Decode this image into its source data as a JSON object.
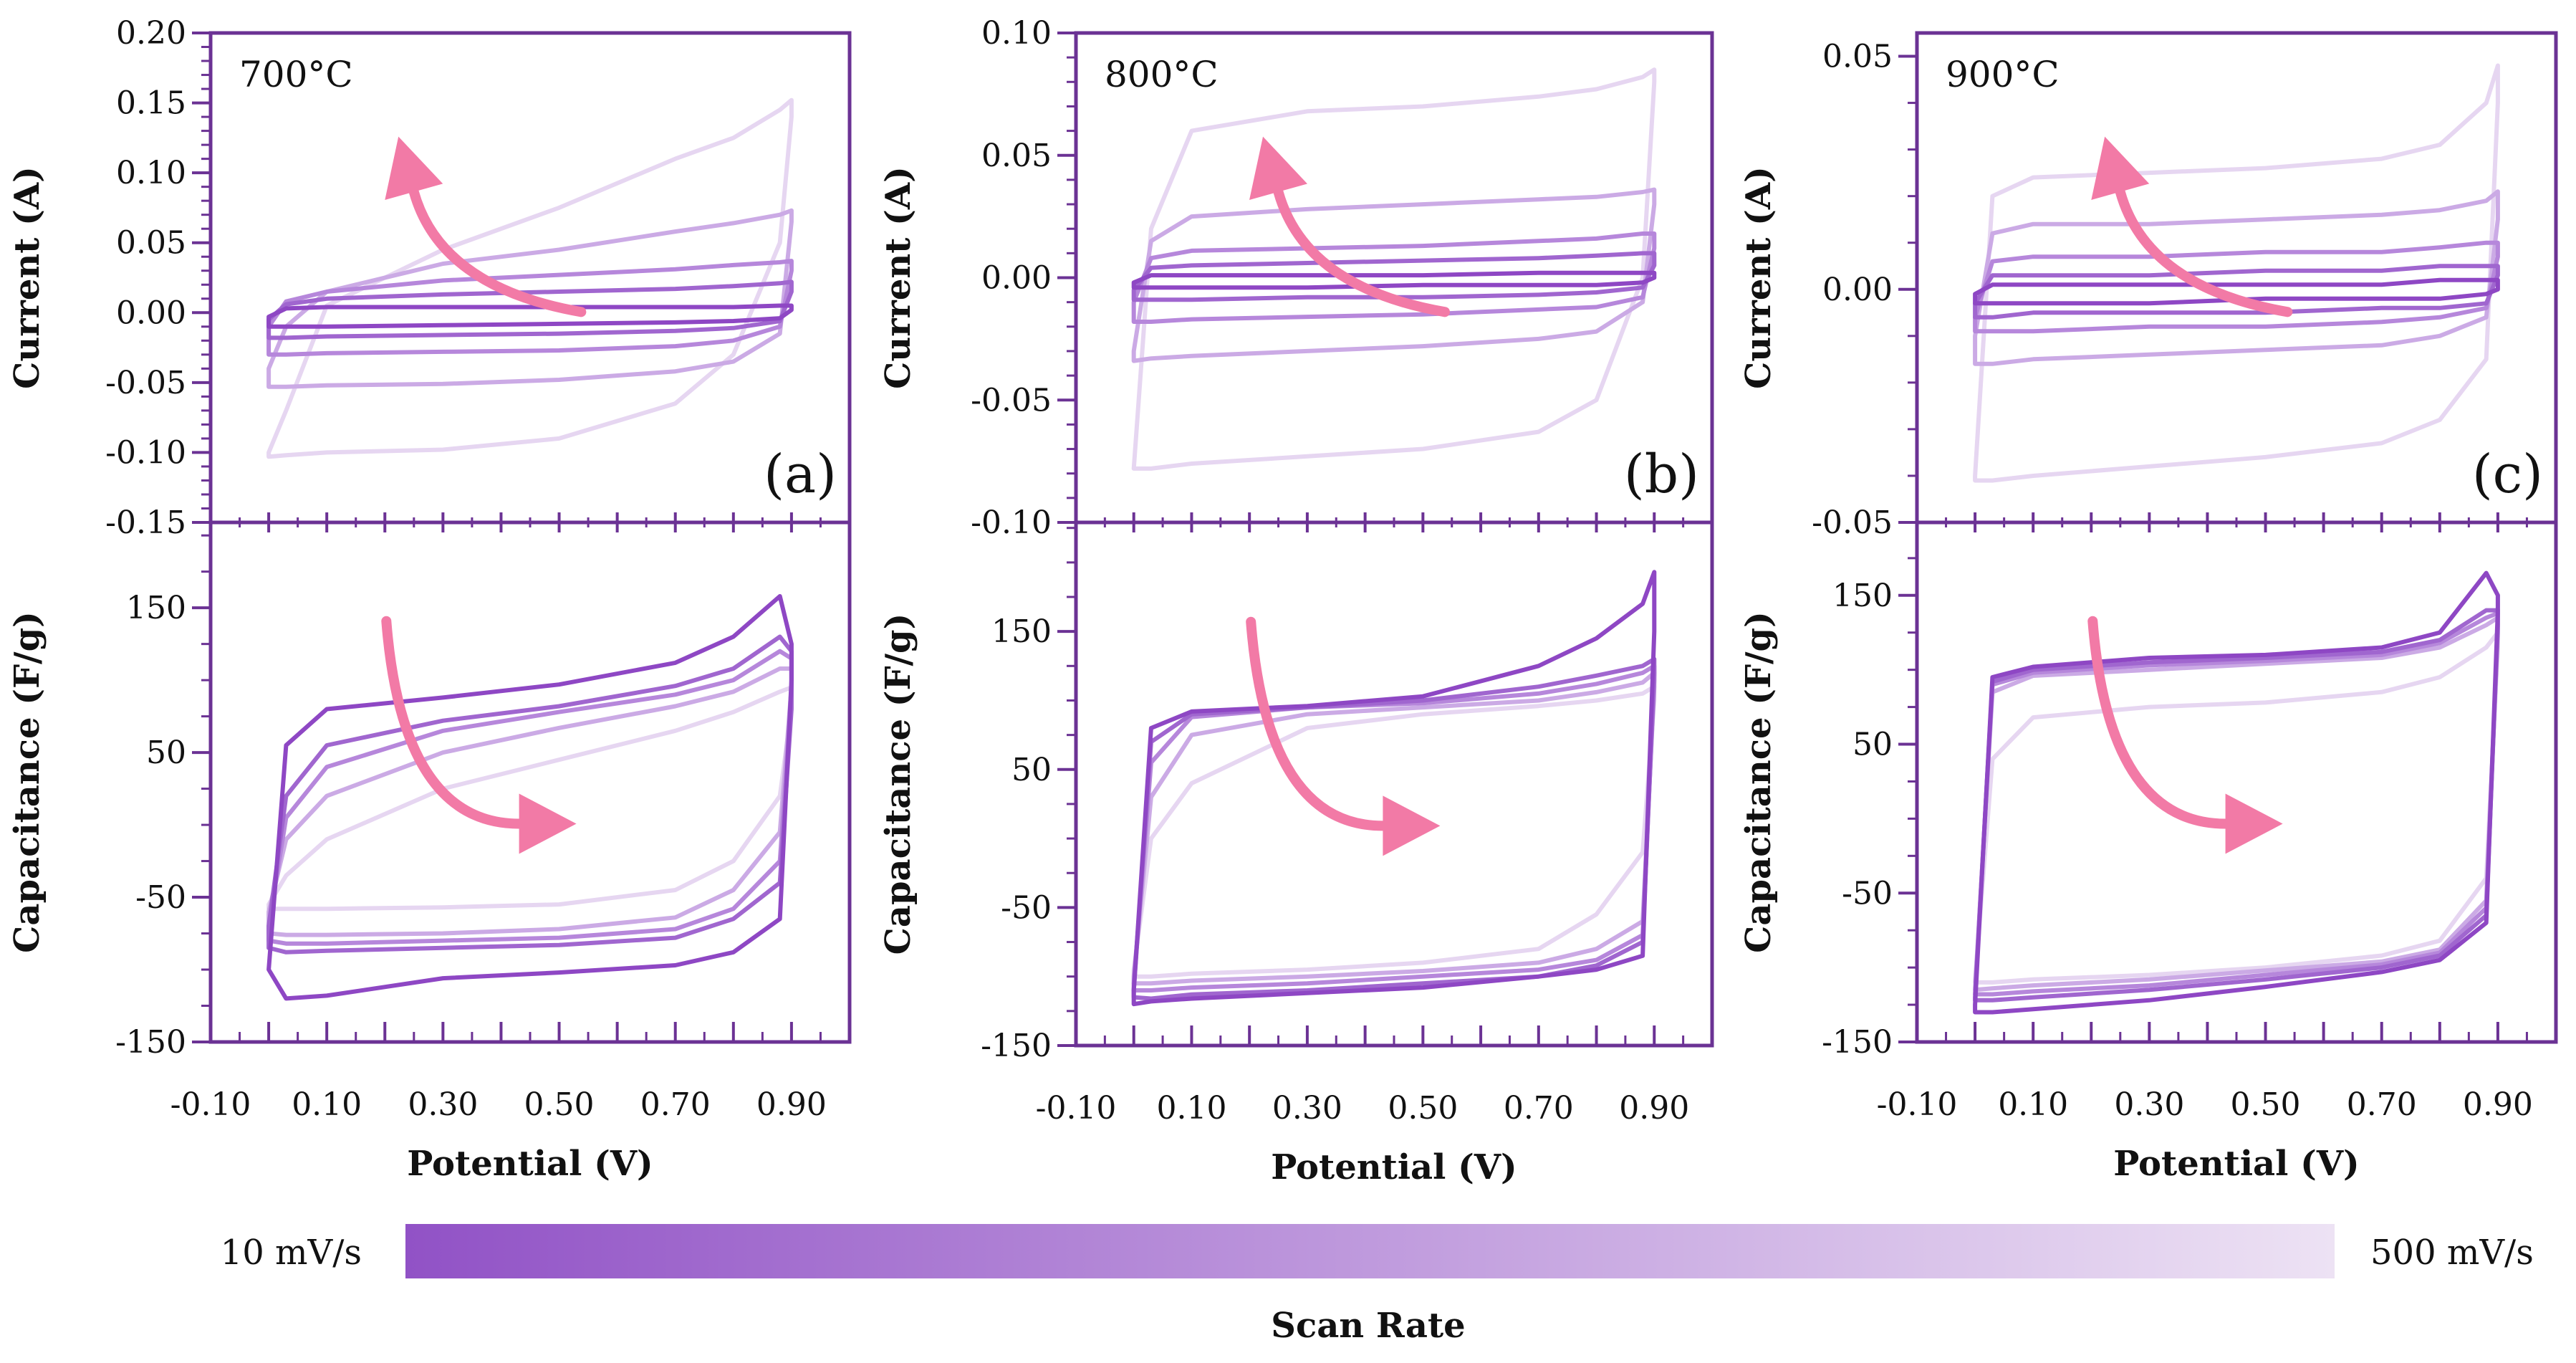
{
  "chart_data": {
    "type": "line",
    "x_grid": [
      0.0,
      0.03,
      0.1,
      0.3,
      0.5,
      0.7,
      0.8,
      0.88,
      0.9
    ],
    "series_colors": [
      "#8e47c4",
      "#a066cf",
      "#b687db",
      "#cbaae5",
      "#e6d6f1"
    ],
    "arrow_color": "#f27aa6",
    "xlabel": "Potential (V)",
    "xlim": [
      -0.1,
      1.0
    ],
    "xticks": [
      "-0.10",
      "0.10",
      "0.30",
      "0.50",
      "0.70",
      "0.90"
    ],
    "panels": [
      {
        "temperature": "700°C",
        "letter": "(a)",
        "current": {
          "ylabel": "Current (A)",
          "ylim": [
            -0.15,
            0.2
          ],
          "yticks": [
            "0.20",
            "0.15",
            "0.10",
            "0.05",
            "0.00",
            "-0.05",
            "-0.10",
            "-0.15"
          ],
          "ytick_values": [
            0.2,
            0.15,
            0.1,
            0.05,
            0.0,
            -0.05,
            -0.1,
            -0.15
          ],
          "series": [
            {
              "upper": [
                -0.003,
                0.003,
                0.004,
                0.004,
                0.004,
                0.004,
                0.004,
                0.005,
                0.005
              ],
              "lower": [
                -0.01,
                -0.01,
                -0.01,
                -0.009,
                -0.008,
                -0.007,
                -0.006,
                -0.004,
                0.002
              ]
            },
            {
              "upper": [
                -0.005,
                0.006,
                0.01,
                0.013,
                0.015,
                0.017,
                0.019,
                0.021,
                0.022
              ],
              "lower": [
                -0.018,
                -0.018,
                -0.017,
                -0.016,
                -0.015,
                -0.013,
                -0.011,
                -0.006,
                0.015
              ]
            },
            {
              "upper": [
                -0.01,
                0.008,
                0.015,
                0.023,
                0.027,
                0.031,
                0.034,
                0.036,
                0.037
              ],
              "lower": [
                -0.03,
                -0.03,
                -0.029,
                -0.028,
                -0.027,
                -0.024,
                -0.02,
                -0.01,
                0.03
              ]
            },
            {
              "upper": [
                -0.04,
                -0.01,
                0.015,
                0.035,
                0.045,
                0.058,
                0.064,
                0.07,
                0.073
              ],
              "lower": [
                -0.053,
                -0.053,
                -0.052,
                -0.051,
                -0.048,
                -0.042,
                -0.035,
                -0.015,
                0.065
              ]
            },
            {
              "upper": [
                -0.1,
                -0.07,
                0.005,
                0.045,
                0.075,
                0.11,
                0.125,
                0.145,
                0.152
              ],
              "lower": [
                -0.103,
                -0.102,
                -0.1,
                -0.098,
                -0.09,
                -0.065,
                -0.03,
                0.05,
                0.14
              ]
            }
          ]
        },
        "capacitance": {
          "ylabel": "Capacitance (F/g)",
          "ylim": [
            -150,
            209
          ],
          "yticks": [
            "150",
            "50",
            "-50",
            "-150"
          ],
          "ytick_values": [
            150,
            50,
            -50,
            -150
          ],
          "series": [
            {
              "upper": [
                -100,
                55,
                80,
                88,
                97,
                112,
                130,
                158,
                125
              ],
              "lower": [
                -100,
                -120,
                -118,
                -106,
                -102,
                -97,
                -88,
                -65,
                100
              ]
            },
            {
              "upper": [
                -70,
                20,
                55,
                72,
                82,
                96,
                108,
                130,
                120
              ],
              "lower": [
                -85,
                -88,
                -87,
                -85,
                -83,
                -78,
                -65,
                -40,
                80
              ]
            },
            {
              "upper": [
                -70,
                5,
                40,
                65,
                78,
                90,
                100,
                120,
                115
              ],
              "lower": [
                -80,
                -82,
                -82,
                -80,
                -78,
                -72,
                -58,
                -25,
                90
              ]
            },
            {
              "upper": [
                -60,
                -10,
                20,
                50,
                67,
                82,
                92,
                108,
                108
              ],
              "lower": [
                -75,
                -76,
                -76,
                -75,
                -72,
                -64,
                -45,
                -5,
                95
              ]
            },
            {
              "upper": [
                -55,
                -35,
                -10,
                25,
                45,
                65,
                78,
                92,
                95
              ],
              "lower": [
                -58,
                -58,
                -58,
                -57,
                -55,
                -45,
                -25,
                20,
                80
              ]
            }
          ]
        }
      },
      {
        "temperature": "800°C",
        "letter": "(b)",
        "current": {
          "ylabel": "Current (A)",
          "ylim": [
            -0.1,
            0.1
          ],
          "yticks": [
            "0.10",
            "0.05",
            "0.00",
            "-0.05",
            "-0.10"
          ],
          "ytick_values": [
            0.1,
            0.05,
            0.0,
            -0.05,
            -0.1
          ],
          "series": [
            {
              "upper": [
                -0.002,
                0.001,
                0.001,
                0.001,
                0.001,
                0.002,
                0.002,
                0.002,
                0.002
              ],
              "lower": [
                -0.004,
                -0.004,
                -0.004,
                -0.004,
                -0.003,
                -0.003,
                -0.003,
                -0.002,
                0.0
              ]
            },
            {
              "upper": [
                -0.005,
                0.004,
                0.005,
                0.006,
                0.007,
                0.008,
                0.009,
                0.01,
                0.01
              ],
              "lower": [
                -0.009,
                -0.009,
                -0.009,
                -0.008,
                -0.008,
                -0.007,
                -0.006,
                -0.004,
                0.005
              ]
            },
            {
              "upper": [
                -0.01,
                0.008,
                0.011,
                0.012,
                0.013,
                0.015,
                0.016,
                0.018,
                0.018
              ],
              "lower": [
                -0.018,
                -0.018,
                -0.017,
                -0.016,
                -0.015,
                -0.013,
                -0.012,
                -0.008,
                0.012
              ]
            },
            {
              "upper": [
                -0.03,
                0.015,
                0.025,
                0.028,
                0.03,
                0.032,
                0.033,
                0.035,
                0.036
              ],
              "lower": [
                -0.034,
                -0.033,
                -0.032,
                -0.03,
                -0.028,
                -0.025,
                -0.022,
                -0.01,
                0.03
              ]
            },
            {
              "upper": [
                -0.078,
                0.02,
                0.06,
                0.068,
                0.07,
                0.074,
                0.077,
                0.082,
                0.085
              ],
              "lower": [
                -0.078,
                -0.078,
                -0.076,
                -0.073,
                -0.07,
                -0.063,
                -0.05,
                0.0,
                0.08
              ]
            }
          ]
        },
        "capacitance": {
          "ylabel": "Capacitance (F/g)",
          "ylim": [
            -150,
            229
          ],
          "yticks": [
            "150",
            "50",
            "-50",
            "-150"
          ],
          "ytick_values": [
            150,
            50,
            -50,
            -150
          ],
          "series": [
            {
              "upper": [
                -110,
                80,
                92,
                96,
                103,
                125,
                145,
                170,
                193
              ],
              "lower": [
                -120,
                -118,
                -116,
                -112,
                -108,
                -100,
                -95,
                -85,
                150
              ]
            },
            {
              "upper": [
                -110,
                70,
                90,
                95,
                100,
                110,
                118,
                125,
                130
              ],
              "lower": [
                -115,
                -116,
                -113,
                -110,
                -105,
                -100,
                -92,
                -75,
                120
              ]
            },
            {
              "upper": [
                -105,
                55,
                88,
                95,
                98,
                105,
                112,
                120,
                125
              ],
              "lower": [
                -110,
                -110,
                -108,
                -105,
                -100,
                -95,
                -88,
                -70,
                115
              ]
            },
            {
              "upper": [
                -100,
                30,
                75,
                90,
                95,
                100,
                106,
                113,
                120
              ],
              "lower": [
                -105,
                -105,
                -103,
                -100,
                -96,
                -90,
                -80,
                -60,
                110
              ]
            },
            {
              "upper": [
                -95,
                0,
                40,
                80,
                90,
                96,
                100,
                105,
                110
              ],
              "lower": [
                -100,
                -100,
                -98,
                -95,
                -90,
                -80,
                -55,
                -10,
                100
              ]
            }
          ]
        }
      },
      {
        "temperature": "900°C",
        "letter": "(c)",
        "current": {
          "ylabel": "Current (A)",
          "ylim": [
            -0.05,
            0.055
          ],
          "yticks": [
            "0.05",
            "0.00",
            "-0.05"
          ],
          "ytick_values": [
            0.05,
            0.0,
            -0.05
          ],
          "series": [
            {
              "upper": [
                -0.001,
                0.001,
                0.001,
                0.001,
                0.001,
                0.001,
                0.002,
                0.002,
                0.002
              ],
              "lower": [
                -0.003,
                -0.003,
                -0.003,
                -0.003,
                -0.002,
                -0.002,
                -0.002,
                -0.001,
                0.0
              ]
            },
            {
              "upper": [
                -0.003,
                0.003,
                0.003,
                0.003,
                0.004,
                0.004,
                0.005,
                0.005,
                0.005
              ],
              "lower": [
                -0.006,
                -0.006,
                -0.005,
                -0.005,
                -0.005,
                -0.004,
                -0.004,
                -0.003,
                0.003
              ]
            },
            {
              "upper": [
                -0.006,
                0.006,
                0.007,
                0.007,
                0.008,
                0.008,
                0.009,
                0.01,
                0.01
              ],
              "lower": [
                -0.009,
                -0.009,
                -0.009,
                -0.008,
                -0.008,
                -0.007,
                -0.006,
                -0.004,
                0.007
              ]
            },
            {
              "upper": [
                -0.01,
                0.012,
                0.014,
                0.014,
                0.015,
                0.016,
                0.017,
                0.019,
                0.021
              ],
              "lower": [
                -0.016,
                -0.016,
                -0.015,
                -0.014,
                -0.013,
                -0.012,
                -0.01,
                -0.006,
                0.015
              ]
            },
            {
              "upper": [
                -0.04,
                0.02,
                0.024,
                0.025,
                0.026,
                0.028,
                0.031,
                0.04,
                0.048
              ],
              "lower": [
                -0.041,
                -0.041,
                -0.04,
                -0.038,
                -0.036,
                -0.033,
                -0.028,
                -0.015,
                0.04
              ]
            }
          ]
        },
        "capacitance": {
          "ylabel": "Capacitance (F/g)",
          "ylim": [
            -150,
            199
          ],
          "yticks": [
            "150",
            "50",
            "-50",
            "-150"
          ],
          "ytick_values": [
            150,
            50,
            -50,
            -150
          ],
          "series": [
            {
              "upper": [
                -125,
                95,
                102,
                108,
                110,
                115,
                125,
                165,
                150
              ],
              "lower": [
                -130,
                -130,
                -128,
                -122,
                -113,
                -103,
                -95,
                -70,
                140
              ]
            },
            {
              "upper": [
                -120,
                92,
                100,
                105,
                108,
                112,
                120,
                140,
                140
              ],
              "lower": [
                -122,
                -122,
                -120,
                -115,
                -108,
                -100,
                -92,
                -65,
                130
              ]
            },
            {
              "upper": [
                -118,
                90,
                98,
                103,
                106,
                110,
                118,
                135,
                138
              ],
              "lower": [
                -118,
                -118,
                -116,
                -112,
                -105,
                -98,
                -90,
                -60,
                128
              ]
            },
            {
              "upper": [
                -115,
                85,
                96,
                100,
                104,
                108,
                115,
                130,
                135
              ],
              "lower": [
                -115,
                -114,
                -112,
                -108,
                -102,
                -96,
                -88,
                -55,
                125
              ]
            },
            {
              "upper": [
                -108,
                40,
                68,
                75,
                78,
                85,
                95,
                115,
                125
              ],
              "lower": [
                -110,
                -110,
                -108,
                -105,
                -100,
                -92,
                -82,
                -40,
                115
              ]
            }
          ]
        }
      }
    ],
    "colorbar": {
      "title": "Scan Rate",
      "min_label": "10 mV/s",
      "max_label": "500 mV/s",
      "color_start": "#9152c6",
      "color_end": "#ede2f4"
    }
  }
}
